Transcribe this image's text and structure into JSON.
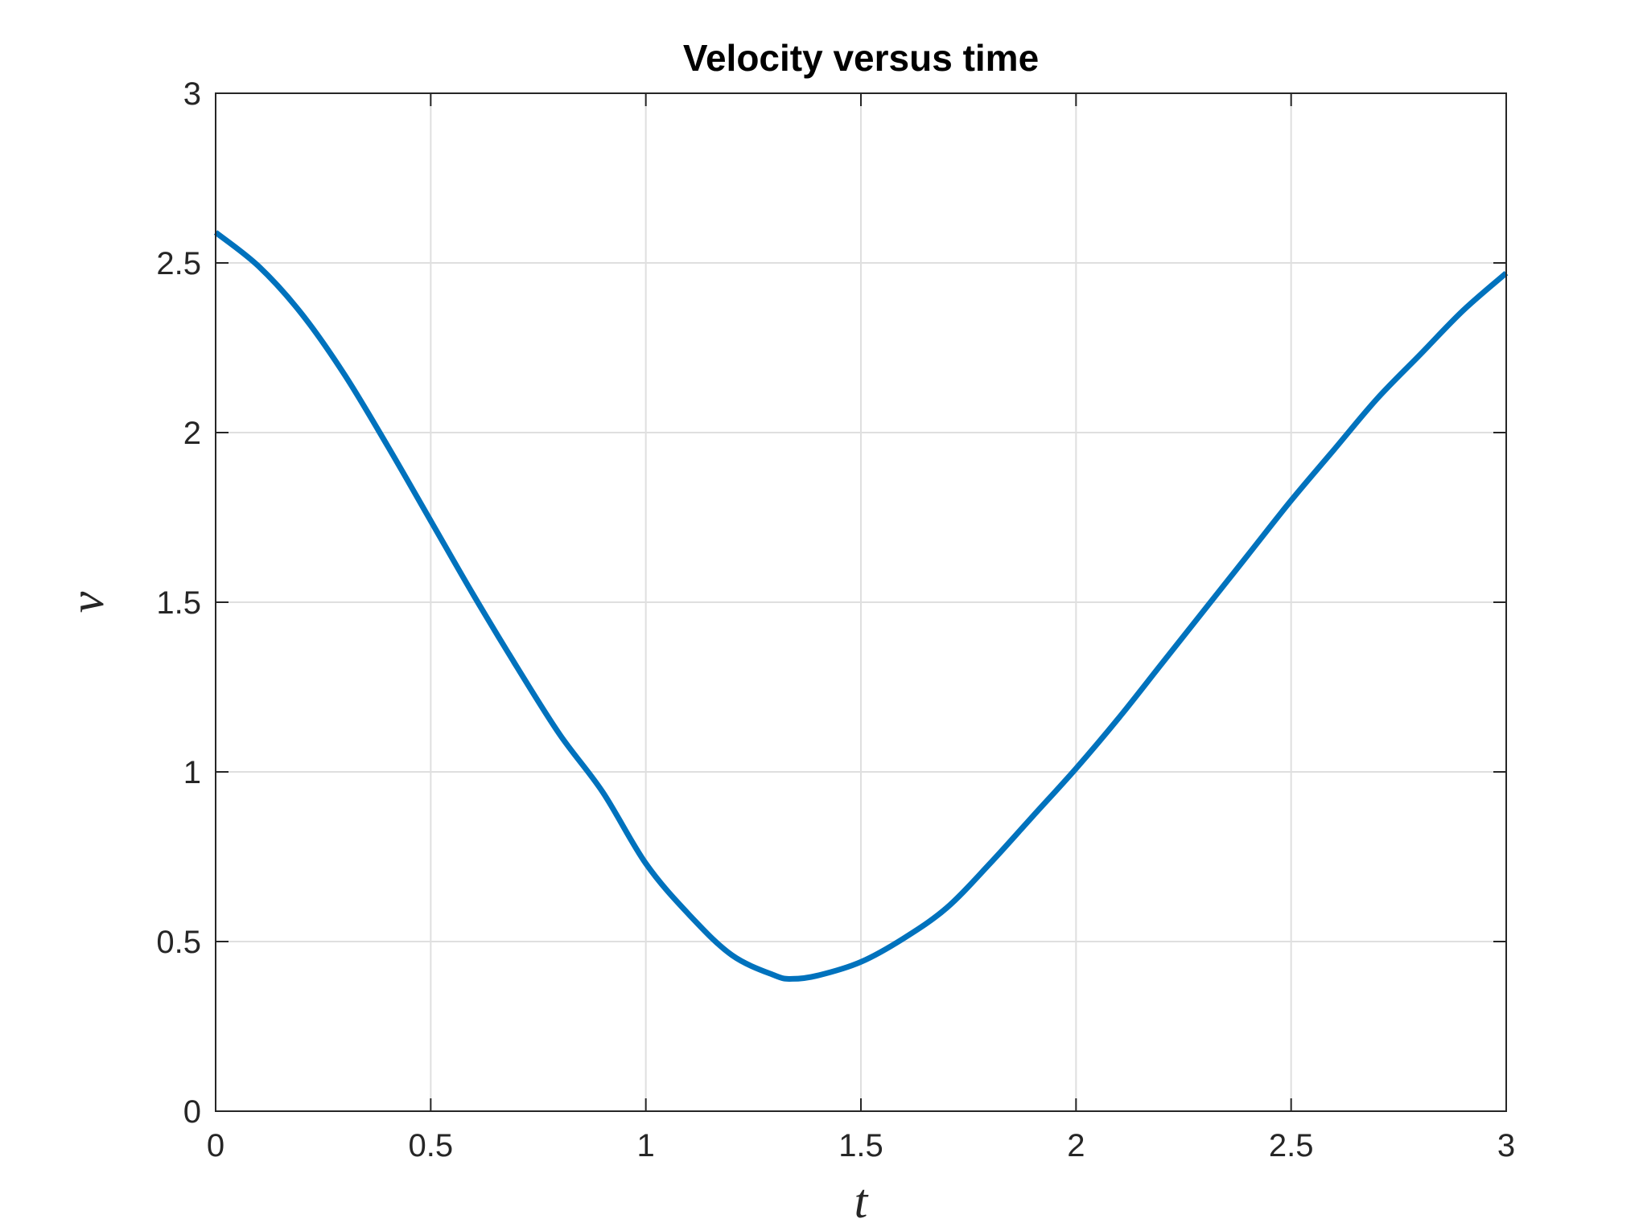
{
  "chart_data": {
    "type": "line",
    "title": "Velocity versus time",
    "xlabel": "t",
    "ylabel": "v",
    "xlim": [
      0,
      3
    ],
    "ylim": [
      0,
      3
    ],
    "xticks": [
      0,
      0.5,
      1,
      1.5,
      2,
      2.5,
      3
    ],
    "yticks": [
      0,
      0.5,
      1,
      1.5,
      2,
      2.5,
      3
    ],
    "xtick_labels": [
      "0",
      "0.5",
      "1",
      "1.5",
      "2",
      "2.5",
      "3"
    ],
    "ytick_labels": [
      "0",
      "0.5",
      "1",
      "1.5",
      "2",
      "2.5",
      "3"
    ],
    "grid": true,
    "line_color": "#0072BD",
    "series": [
      {
        "x": [
          0,
          0.1,
          0.2,
          0.3,
          0.4,
          0.5,
          0.6,
          0.7,
          0.8,
          0.9,
          1.0,
          1.1,
          1.2,
          1.3,
          1.34,
          1.4,
          1.5,
          1.6,
          1.7,
          1.8,
          1.9,
          2.0,
          2.1,
          2.2,
          2.3,
          2.4,
          2.5,
          2.6,
          2.7,
          2.8,
          2.9,
          3.0
        ],
        "y": [
          2.59,
          2.49,
          2.35,
          2.17,
          1.96,
          1.74,
          1.52,
          1.31,
          1.11,
          0.94,
          0.73,
          0.58,
          0.46,
          0.4,
          0.39,
          0.4,
          0.44,
          0.51,
          0.6,
          0.73,
          0.87,
          1.01,
          1.16,
          1.32,
          1.48,
          1.64,
          1.8,
          1.95,
          2.1,
          2.23,
          2.36,
          2.47
        ]
      }
    ]
  }
}
